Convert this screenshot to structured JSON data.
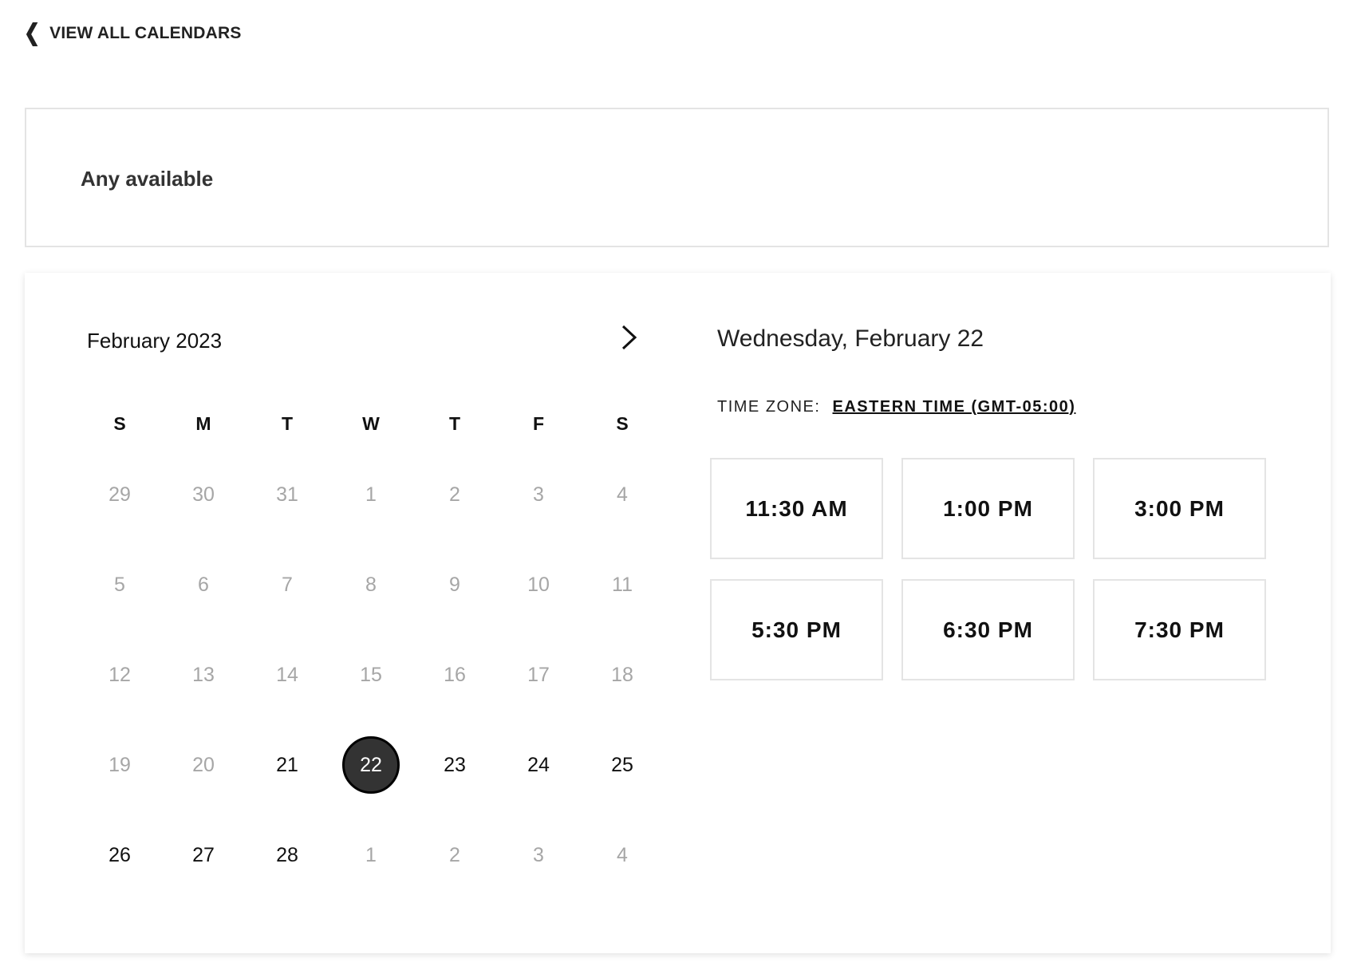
{
  "nav": {
    "back_label": "VIEW ALL CALENDARS"
  },
  "calendar_select": {
    "value": "Any available"
  },
  "calendar": {
    "month_label": "February 2023",
    "weekdays": [
      "S",
      "M",
      "T",
      "W",
      "T",
      "F",
      "S"
    ],
    "weeks": [
      [
        {
          "d": "29",
          "s": "muted"
        },
        {
          "d": "30",
          "s": "muted"
        },
        {
          "d": "31",
          "s": "muted"
        },
        {
          "d": "1",
          "s": "muted"
        },
        {
          "d": "2",
          "s": "muted"
        },
        {
          "d": "3",
          "s": "muted"
        },
        {
          "d": "4",
          "s": "muted"
        }
      ],
      [
        {
          "d": "5",
          "s": "muted"
        },
        {
          "d": "6",
          "s": "muted"
        },
        {
          "d": "7",
          "s": "muted"
        },
        {
          "d": "8",
          "s": "muted"
        },
        {
          "d": "9",
          "s": "muted"
        },
        {
          "d": "10",
          "s": "muted"
        },
        {
          "d": "11",
          "s": "muted"
        }
      ],
      [
        {
          "d": "12",
          "s": "muted"
        },
        {
          "d": "13",
          "s": "muted"
        },
        {
          "d": "14",
          "s": "muted"
        },
        {
          "d": "15",
          "s": "muted"
        },
        {
          "d": "16",
          "s": "muted"
        },
        {
          "d": "17",
          "s": "muted"
        },
        {
          "d": "18",
          "s": "muted"
        }
      ],
      [
        {
          "d": "19",
          "s": "muted"
        },
        {
          "d": "20",
          "s": "muted"
        },
        {
          "d": "21",
          "s": "avail"
        },
        {
          "d": "22",
          "s": "sel"
        },
        {
          "d": "23",
          "s": "avail"
        },
        {
          "d": "24",
          "s": "avail"
        },
        {
          "d": "25",
          "s": "avail"
        }
      ],
      [
        {
          "d": "26",
          "s": "avail"
        },
        {
          "d": "27",
          "s": "avail"
        },
        {
          "d": "28",
          "s": "avail"
        },
        {
          "d": "1",
          "s": "muted"
        },
        {
          "d": "2",
          "s": "muted"
        },
        {
          "d": "3",
          "s": "muted"
        },
        {
          "d": "4",
          "s": "muted"
        }
      ]
    ]
  },
  "selected_date": "Wednesday, February 22",
  "timezone": {
    "label": "TIME ZONE:",
    "value": "EASTERN TIME (GMT-05:00)"
  },
  "slots": [
    "11:30 AM",
    "1:00 PM",
    "3:00 PM",
    "5:30 PM",
    "6:30 PM",
    "7:30 PM"
  ],
  "colors": {
    "selected_day": "#333333",
    "muted_day": "#a6a6a6",
    "border": "#e4e4e4"
  }
}
